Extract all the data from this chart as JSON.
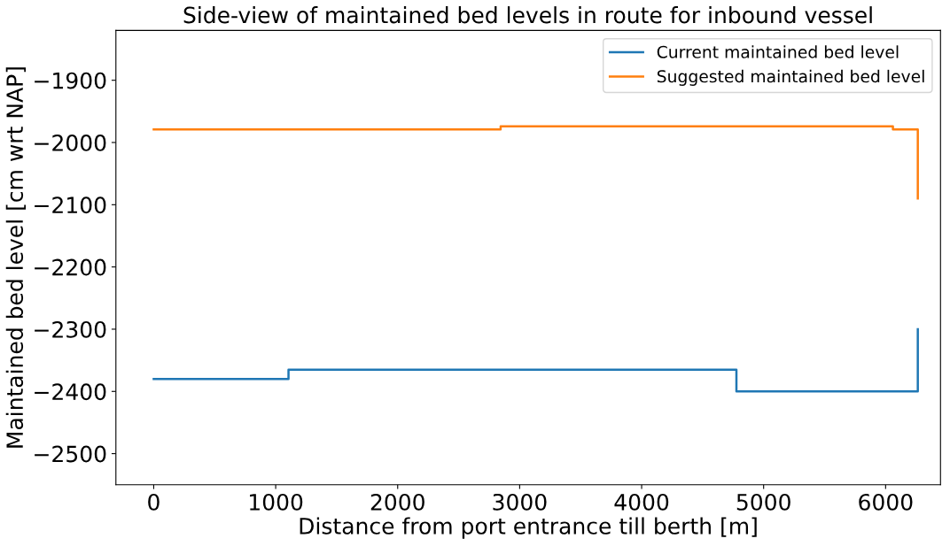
{
  "chart_data": {
    "type": "step",
    "title": "Side-view of maintained bed levels in route for inbound vessel",
    "xlabel": "Distance from port entrance till berth [m]",
    "ylabel": "Maintained bed level [cm wrt NAP]",
    "series": [
      {
        "name": "Current maintained bed level",
        "color": "#1f77b4",
        "x": [
          0,
          1105,
          4777,
          6264,
          6264
        ],
        "values": [
          -2380,
          -2365,
          -2400,
          -2400,
          -2300
        ]
      },
      {
        "name": "Suggested maintained bed level",
        "color": "#ff7f0e",
        "x": [
          0,
          2844,
          6060,
          6264,
          6264
        ],
        "values": [
          -1979,
          -1974,
          -1979,
          -1979,
          -2090
        ]
      }
    ],
    "xlim": [
      -310,
      6450
    ],
    "xticks": [
      0,
      1000,
      2000,
      3000,
      4000,
      5000,
      6000
    ],
    "ylim": [
      -2550,
      -1820
    ],
    "yticks": [
      {
        "value": -2500,
        "label": "−2500"
      },
      {
        "value": -2400,
        "label": "−2400"
      },
      {
        "value": -2300,
        "label": "−2300"
      },
      {
        "value": -2200,
        "label": "−2200"
      },
      {
        "value": -2100,
        "label": "−2100"
      },
      {
        "value": -2000,
        "label": "−2000"
      },
      {
        "value": -1900,
        "label": "−1900"
      }
    ],
    "grid": false,
    "legend": "top right"
  }
}
